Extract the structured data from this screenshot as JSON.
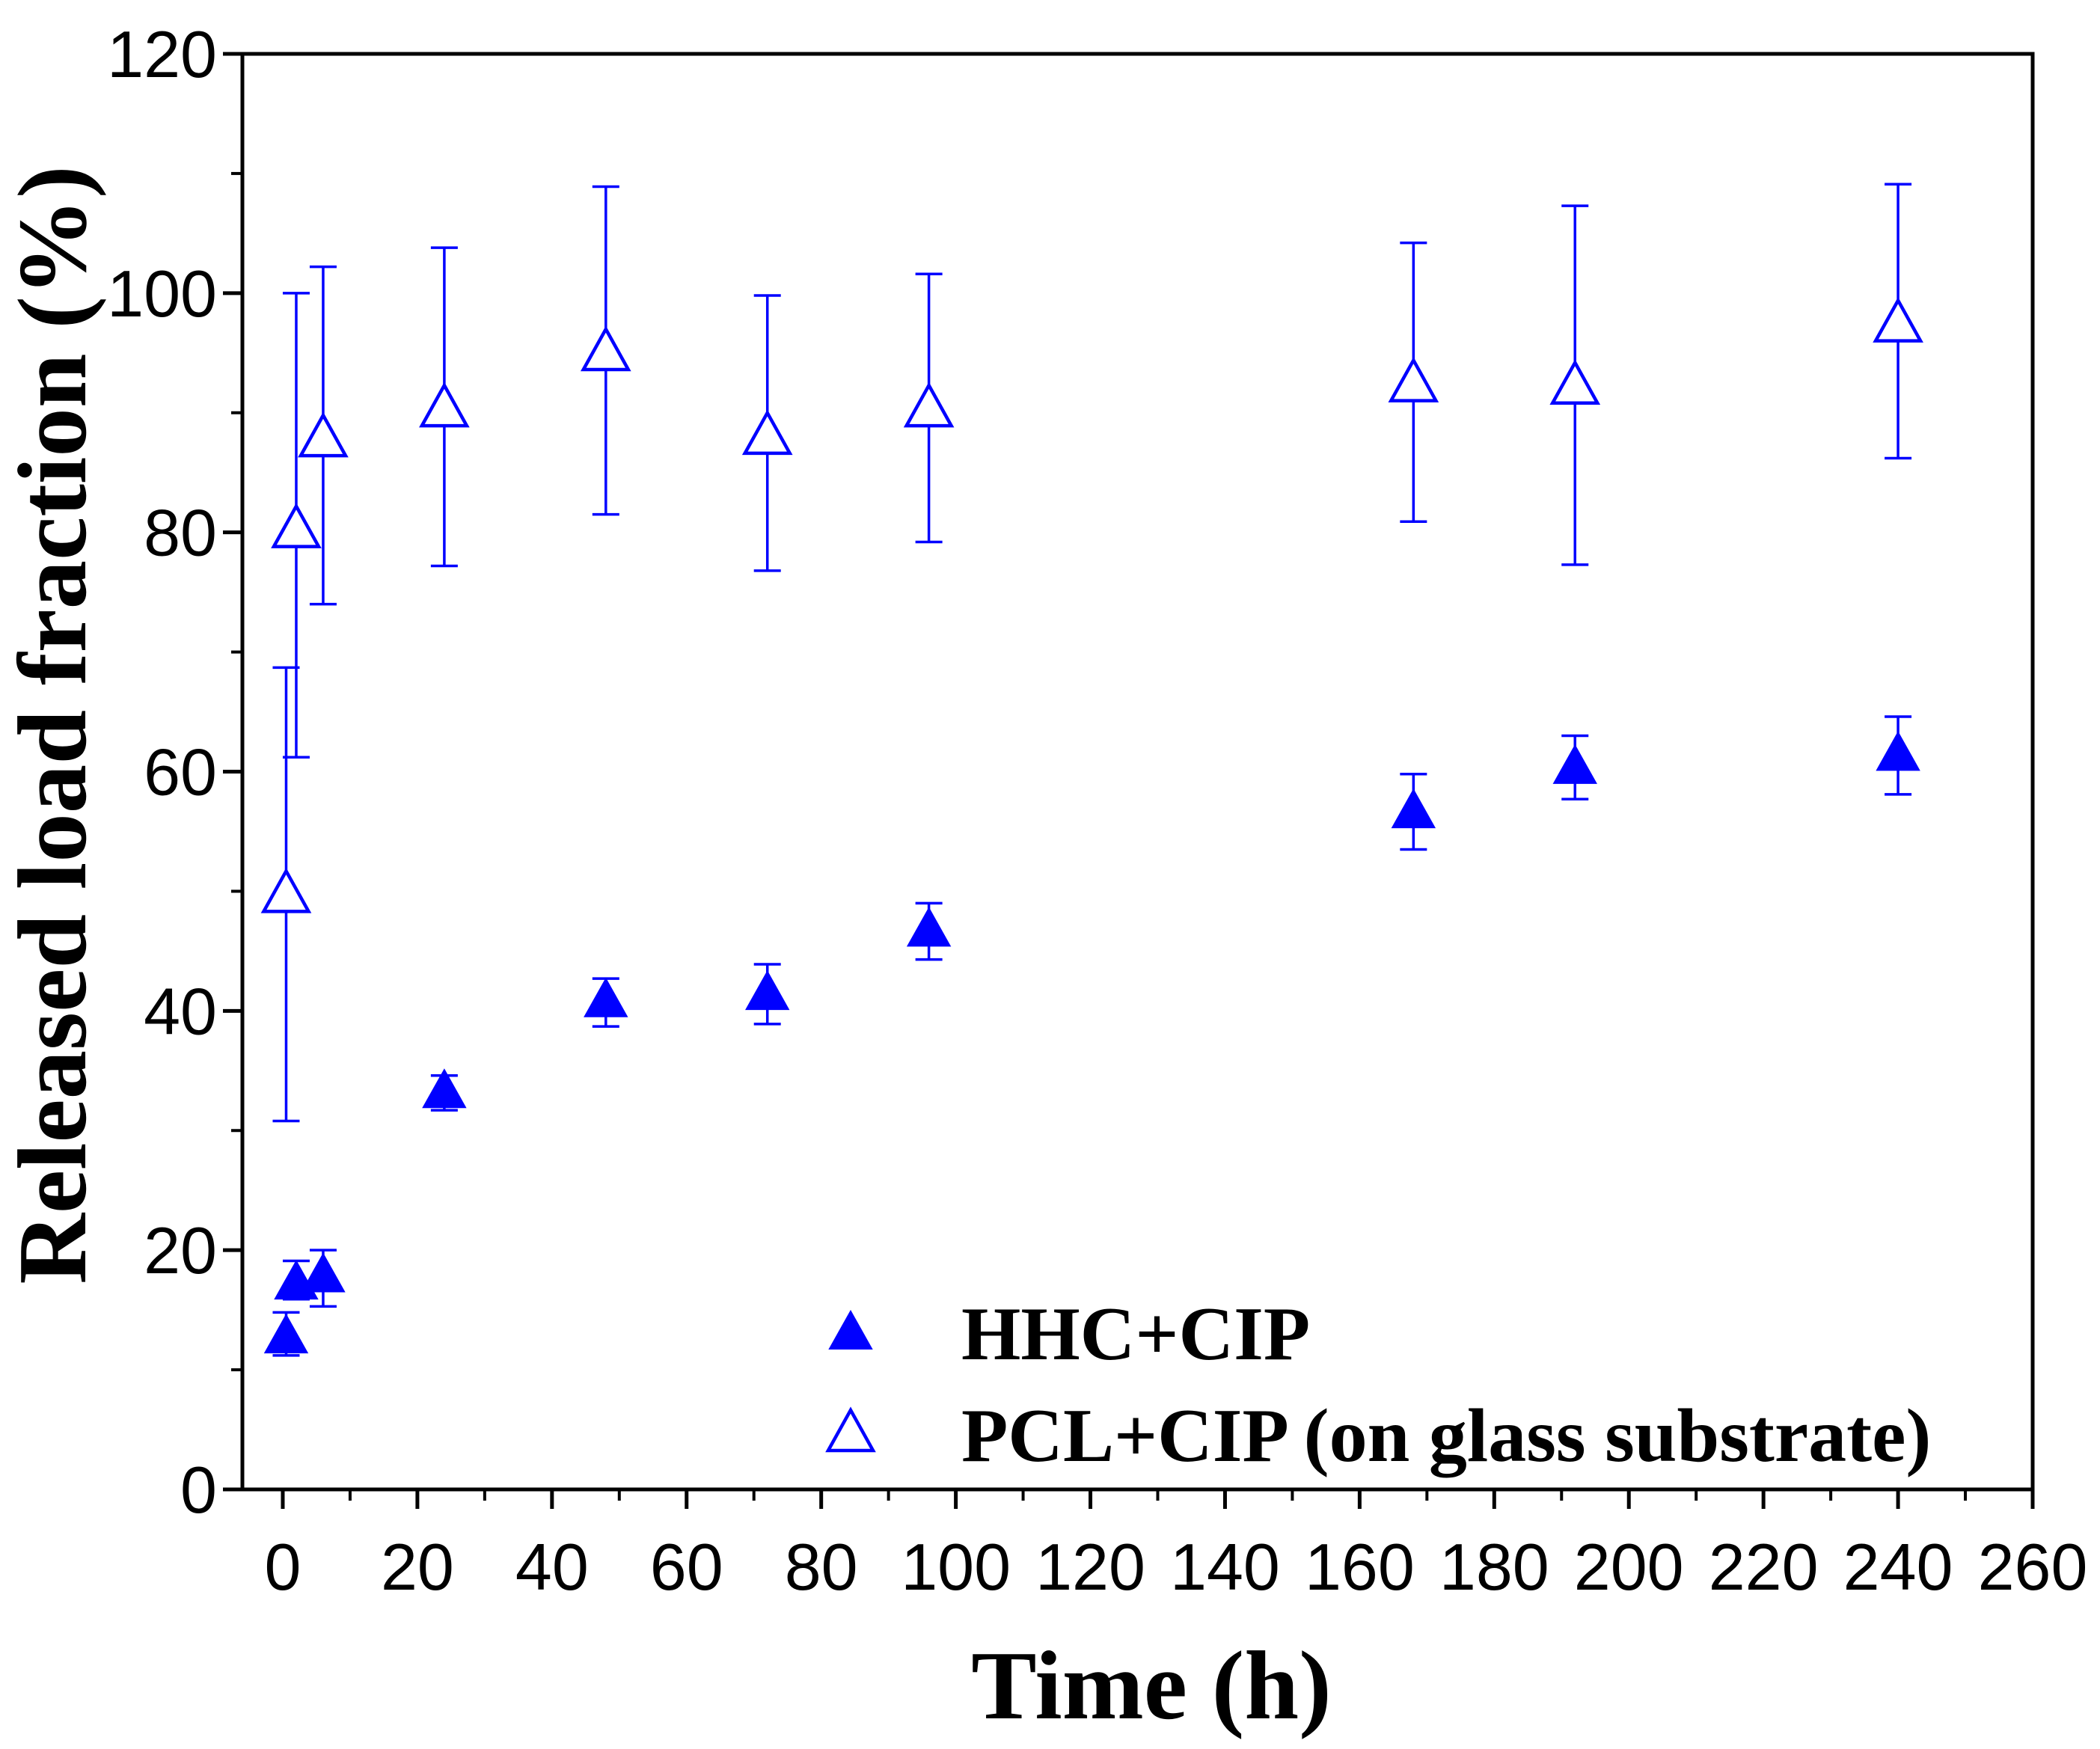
{
  "chart_data": {
    "type": "scatter",
    "xlabel": "Time (h)",
    "ylabel": "Released load fraction (%)",
    "xlim": [
      -6,
      260
    ],
    "ylim": [
      0,
      120
    ],
    "xticks": [
      0,
      20,
      40,
      60,
      80,
      100,
      120,
      140,
      160,
      180,
      200,
      220,
      240,
      260
    ],
    "yticks": [
      0,
      20,
      40,
      60,
      80,
      100,
      120
    ],
    "grid": false,
    "legend_position": "bottom-center",
    "series": [
      {
        "name": "HHC+CIP",
        "marker": "triangle-filled",
        "color": "#0000FF",
        "x": [
          0.5,
          2,
          6,
          24,
          48,
          72,
          96,
          168,
          192,
          240
        ],
        "y": [
          13.0,
          17.5,
          18.1,
          33.5,
          41.1,
          41.7,
          47.0,
          56.9,
          60.6,
          61.7
        ],
        "y_low": [
          11.2,
          15.9,
          15.3,
          31.7,
          38.7,
          38.9,
          44.3,
          53.5,
          57.7,
          58.1
        ],
        "y_high": [
          14.8,
          19.1,
          20.0,
          34.6,
          42.7,
          43.9,
          49.0,
          59.8,
          63.0,
          64.6
        ]
      },
      {
        "name": "PCL+CIP (on glass substrate)",
        "marker": "triangle-open",
        "color": "#0000FF",
        "x": [
          0.5,
          2,
          6,
          24,
          48,
          72,
          96,
          168,
          192,
          240
        ],
        "y": [
          50.0,
          80.5,
          88.1,
          90.6,
          95.3,
          88.3,
          90.6,
          92.7,
          92.5,
          97.7
        ],
        "y_low": [
          30.8,
          61.2,
          74.0,
          77.2,
          81.5,
          76.8,
          79.2,
          80.9,
          77.3,
          86.2
        ],
        "y_high": [
          68.7,
          100.0,
          102.2,
          103.8,
          108.9,
          99.8,
          101.6,
          104.2,
          107.3,
          109.1
        ]
      }
    ]
  }
}
